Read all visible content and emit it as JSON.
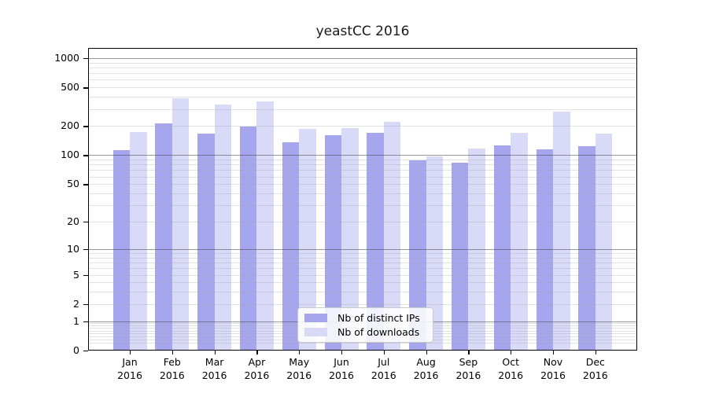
{
  "chart_data": {
    "type": "bar",
    "title": "yeastCC 2016",
    "categories": [
      "Jan 2016",
      "Feb 2016",
      "Mar 2016",
      "Apr 2016",
      "May 2016",
      "Jun 2016",
      "Jul 2016",
      "Aug 2016",
      "Sep 2016",
      "Oct 2016",
      "Nov 2016",
      "Dec 2016"
    ],
    "months": [
      "Jan",
      "Feb",
      "Mar",
      "Apr",
      "May",
      "Jun",
      "Jul",
      "Aug",
      "Sep",
      "Oct",
      "Nov",
      "Dec"
    ],
    "year": "2016",
    "series": [
      {
        "name": "Nb of distinct IPs",
        "color": "#a6a6ef",
        "values": [
          112,
          213,
          168,
          199,
          137,
          161,
          170,
          88,
          84,
          127,
          116,
          125
        ]
      },
      {
        "name": "Nb of downloads",
        "color": "#d9d9f8",
        "values": [
          174,
          385,
          333,
          358,
          187,
          190,
          221,
          98,
          118,
          169,
          280,
          166
        ]
      }
    ],
    "yscale": "log1p",
    "yticks": [
      0,
      1,
      2,
      5,
      10,
      20,
      50,
      100,
      200,
      500,
      1000
    ],
    "ylim": [
      0,
      1250
    ],
    "xlabel": "",
    "ylabel": "",
    "grid": true,
    "legend_position": "inside-bottom-center"
  },
  "colors": {
    "background": "#ffffff",
    "axis": "#000000",
    "grid_minor": "rgba(160,160,160,0.30)",
    "grid_major": "rgba(70,70,70,0.55)",
    "bar_ips": "#a6a6ef",
    "bar_downloads": "#d9d9f8"
  }
}
